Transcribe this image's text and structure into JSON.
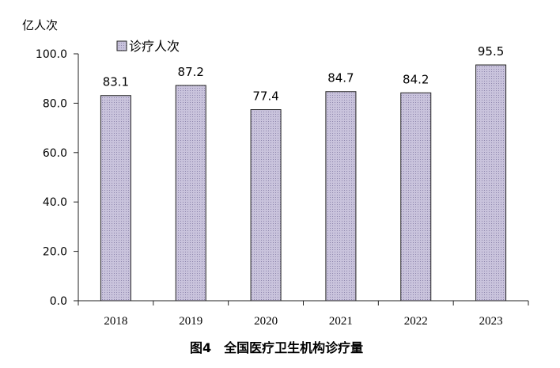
{
  "chart_data": {
    "type": "bar",
    "title": "图4　全国医疗卫生机构诊疗量",
    "ylabel": "亿人次",
    "xlabel": "",
    "categories": [
      "2018",
      "2019",
      "2020",
      "2021",
      "2022",
      "2023"
    ],
    "series": [
      {
        "name": "诊疗人次",
        "values": [
          83.1,
          87.2,
          77.4,
          84.7,
          84.2,
          95.5
        ]
      }
    ],
    "data_labels": [
      "83.1",
      "87.2",
      "77.4",
      "84.7",
      "84.2",
      "95.5"
    ],
    "yticks": [
      "0.0",
      "20.0",
      "40.0",
      "60.0",
      "80.0",
      "100.0"
    ],
    "ylim": [
      0,
      100
    ],
    "grid": false,
    "legend_position": "top-left",
    "colors": {
      "bar_fill": "#c9c3dc",
      "bar_pattern": "#8e86ad",
      "bar_stroke": "#222222",
      "axis": "#222222"
    }
  }
}
